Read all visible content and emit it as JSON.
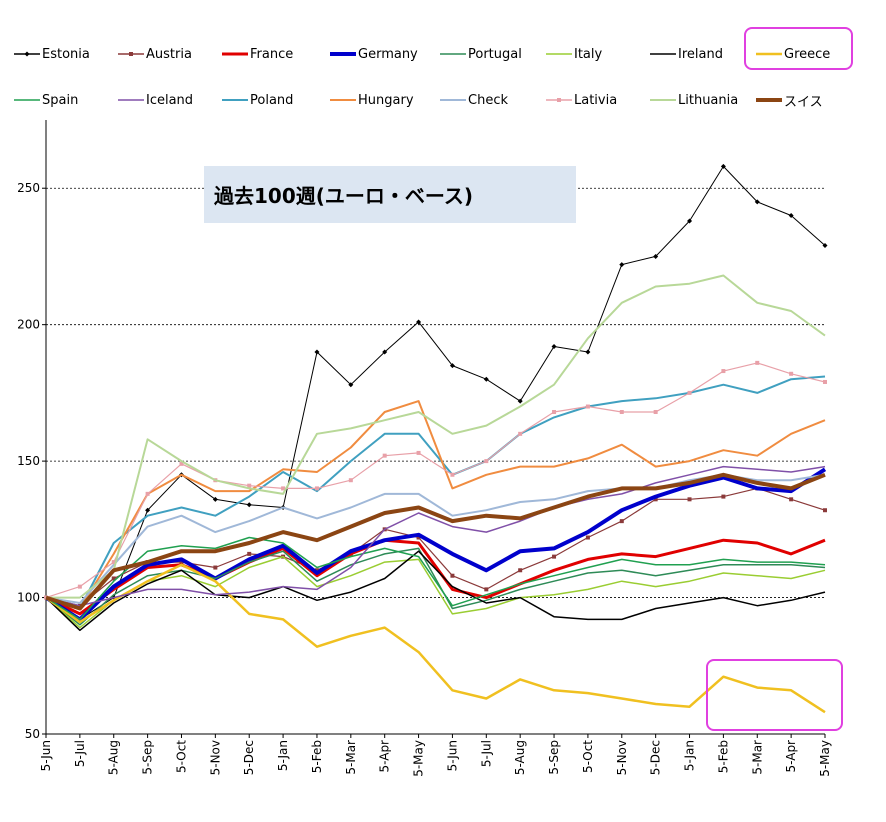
{
  "chart_data": {
    "type": "line",
    "title": "過去100週(ユーロ・ベース)",
    "xlabel": "",
    "ylabel": "",
    "ylim": [
      50,
      275
    ],
    "yticks": [
      50,
      100,
      150,
      200,
      250
    ],
    "grid": "horizontal dotted at 100, 150, 200, 250",
    "legend_position": "top",
    "x": [
      "5-Jun",
      "5-Jul",
      "5-Aug",
      "5-Sep",
      "5-Oct",
      "5-Nov",
      "5-Dec",
      "5-Jan",
      "5-Feb",
      "5-Mar",
      "5-Apr",
      "5-May",
      "5-Jun",
      "5-Jul",
      "5-Aug",
      "5-Sep",
      "5-Oct",
      "5-Nov",
      "5-Dec",
      "5-Jan",
      "5-Feb",
      "5-Mar",
      "5-Apr",
      "5-May"
    ],
    "series": [
      {
        "name": "Estonia",
        "color": "#000000",
        "marker": "diamond",
        "width": 1,
        "values": [
          100,
          92,
          100,
          132,
          145,
          136,
          134,
          133,
          190,
          178,
          190,
          201,
          185,
          180,
          172,
          192,
          190,
          222,
          225,
          238,
          258,
          245,
          240,
          229
        ]
      },
      {
        "name": "Austria",
        "color": "#8b3a3a",
        "marker": "square",
        "width": 1.2,
        "values": [
          100,
          97,
          107,
          113,
          113,
          111,
          116,
          115,
          110,
          116,
          125,
          122,
          108,
          103,
          110,
          115,
          122,
          128,
          136,
          136,
          137,
          140,
          136,
          132
        ]
      },
      {
        "name": "France",
        "color": "#e00000",
        "marker": "none",
        "width": 3,
        "values": [
          100,
          94,
          103,
          111,
          112,
          107,
          113,
          118,
          108,
          116,
          121,
          120,
          103,
          100,
          105,
          110,
          114,
          116,
          115,
          118,
          121,
          120,
          116,
          121
        ]
      },
      {
        "name": "Germany",
        "color": "#0000cc",
        "marker": "none",
        "width": 4,
        "values": [
          100,
          92,
          104,
          112,
          114,
          107,
          114,
          119,
          109,
          117,
          121,
          123,
          116,
          110,
          117,
          118,
          124,
          132,
          137,
          141,
          144,
          140,
          139,
          147
        ]
      },
      {
        "name": "Portugal",
        "color": "#2e8b57",
        "marker": "none",
        "width": 1.5,
        "values": [
          100,
          90,
          101,
          108,
          110,
          107,
          113,
          117,
          106,
          112,
          116,
          118,
          96,
          99,
          103,
          106,
          109,
          110,
          108,
          110,
          112,
          112,
          112,
          111
        ]
      },
      {
        "name": "Italy",
        "color": "#9acd32",
        "marker": "none",
        "width": 1.5,
        "values": [
          100,
          89,
          99,
          106,
          108,
          104,
          111,
          115,
          104,
          108,
          113,
          114,
          94,
          96,
          100,
          101,
          103,
          106,
          104,
          106,
          109,
          108,
          107,
          110
        ]
      },
      {
        "name": "Ireland",
        "color": "#000000",
        "marker": "none",
        "width": 1.5,
        "values": [
          100,
          88,
          98,
          105,
          110,
          101,
          100,
          104,
          99,
          102,
          107,
          117,
          104,
          98,
          100,
          93,
          92,
          92,
          96,
          98,
          100,
          97,
          99,
          102
        ]
      },
      {
        "name": "Greece",
        "color": "#f0c020",
        "marker": "none",
        "width": 2.5,
        "values": [
          100,
          91,
          99,
          106,
          112,
          106,
          94,
          92,
          82,
          86,
          89,
          80,
          66,
          63,
          70,
          66,
          65,
          63,
          61,
          60,
          71,
          67,
          66,
          58
        ]
      },
      {
        "name": "Spain",
        "color": "#20a050",
        "marker": "none",
        "width": 1.5,
        "values": [
          100,
          92,
          106,
          117,
          119,
          118,
          122,
          120,
          111,
          115,
          118,
          115,
          97,
          101,
          105,
          108,
          111,
          114,
          112,
          112,
          114,
          113,
          113,
          112
        ]
      },
      {
        "name": "Iceland",
        "color": "#8050a8",
        "marker": "none",
        "width": 1.5,
        "values": [
          100,
          97,
          100,
          103,
          103,
          101,
          102,
          104,
          103,
          111,
          125,
          131,
          126,
          124,
          128,
          133,
          136,
          138,
          142,
          145,
          148,
          147,
          146,
          148
        ]
      },
      {
        "name": "Poland",
        "color": "#40a0c0",
        "marker": "none",
        "width": 2,
        "values": [
          100,
          96,
          120,
          130,
          133,
          130,
          137,
          146,
          139,
          150,
          160,
          160,
          145,
          150,
          160,
          166,
          170,
          172,
          173,
          175,
          178,
          175,
          180,
          181
        ]
      },
      {
        "name": "Hungary",
        "color": "#f08c40",
        "marker": "none",
        "width": 2,
        "values": [
          100,
          96,
          116,
          138,
          145,
          139,
          139,
          147,
          146,
          155,
          168,
          172,
          140,
          145,
          148,
          148,
          151,
          156,
          148,
          150,
          154,
          152,
          160,
          165
        ]
      },
      {
        "name": "Check",
        "color": "#a0b8d8",
        "marker": "none",
        "width": 2,
        "values": [
          100,
          98,
          112,
          126,
          130,
          124,
          128,
          133,
          129,
          133,
          138,
          138,
          130,
          132,
          135,
          136,
          139,
          140,
          140,
          143,
          145,
          143,
          143,
          145
        ]
      },
      {
        "name": "Lativia",
        "color": "#e8a0a8",
        "marker": "square",
        "width": 1.2,
        "values": [
          100,
          104,
          113,
          138,
          149,
          143,
          141,
          140,
          140,
          143,
          152,
          153,
          145,
          150,
          160,
          168,
          170,
          168,
          168,
          175,
          183,
          186,
          182,
          179
        ]
      },
      {
        "name": "Lithuania",
        "color": "#b8d898",
        "marker": "none",
        "width": 2,
        "values": [
          100,
          100,
          110,
          158,
          150,
          143,
          140,
          138,
          160,
          162,
          165,
          168,
          160,
          163,
          170,
          178,
          195,
          208,
          214,
          215,
          218,
          208,
          205,
          196
        ]
      },
      {
        "name": "スイス",
        "color": "#8b4513",
        "marker": "none",
        "width": 4,
        "values": [
          100,
          96,
          110,
          113,
          117,
          117,
          120,
          124,
          121,
          126,
          131,
          133,
          128,
          130,
          129,
          133,
          137,
          140,
          140,
          142,
          145,
          142,
          140,
          145
        ]
      }
    ]
  }
}
